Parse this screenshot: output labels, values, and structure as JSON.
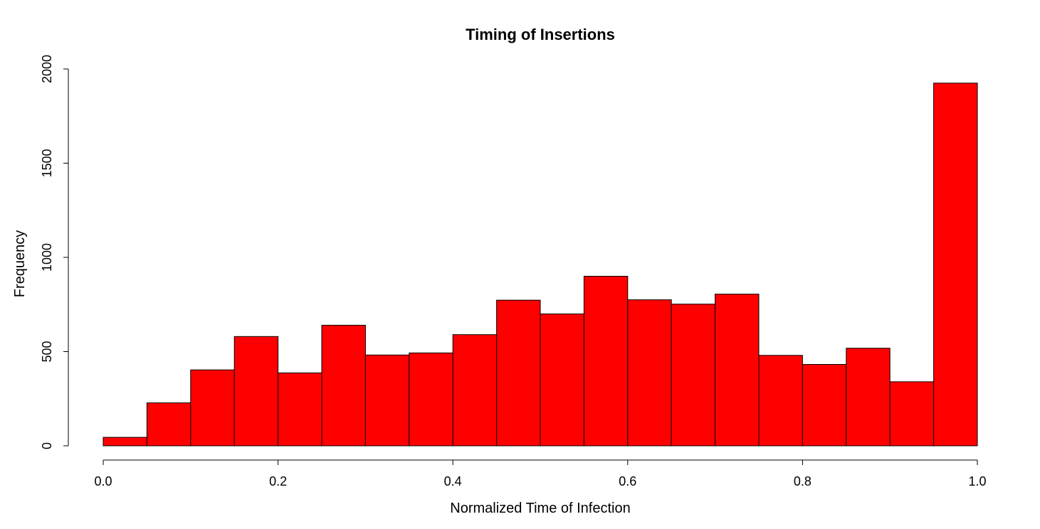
{
  "chart_data": {
    "type": "bar",
    "title": "Timing of Insertions",
    "xlabel": "Normalized Time of Infection",
    "ylabel": "Frequency",
    "bin_edges": [
      0.0,
      0.05,
      0.1,
      0.15,
      0.2,
      0.25,
      0.3,
      0.35,
      0.4,
      0.45,
      0.5,
      0.55,
      0.6,
      0.65,
      0.7,
      0.75,
      0.8,
      0.85,
      0.9,
      0.95,
      1.0
    ],
    "values": [
      45,
      228,
      403,
      580,
      387,
      640,
      482,
      493,
      590,
      773,
      700,
      900,
      775,
      752,
      805,
      480,
      432,
      518,
      340,
      1925
    ],
    "xlim": [
      0.0,
      1.0
    ],
    "ylim": [
      0,
      2000
    ],
    "x_ticks": [
      0.0,
      0.2,
      0.4,
      0.6,
      0.8,
      1.0
    ],
    "x_tick_labels": [
      "0.0",
      "0.2",
      "0.4",
      "0.6",
      "0.8",
      "1.0"
    ],
    "y_ticks": [
      0,
      500,
      1000,
      1500,
      2000
    ],
    "y_tick_labels": [
      "0",
      "500",
      "1000",
      "1500",
      "2000"
    ],
    "bar_color": "#ff0000",
    "grid": false,
    "legend": "none"
  }
}
